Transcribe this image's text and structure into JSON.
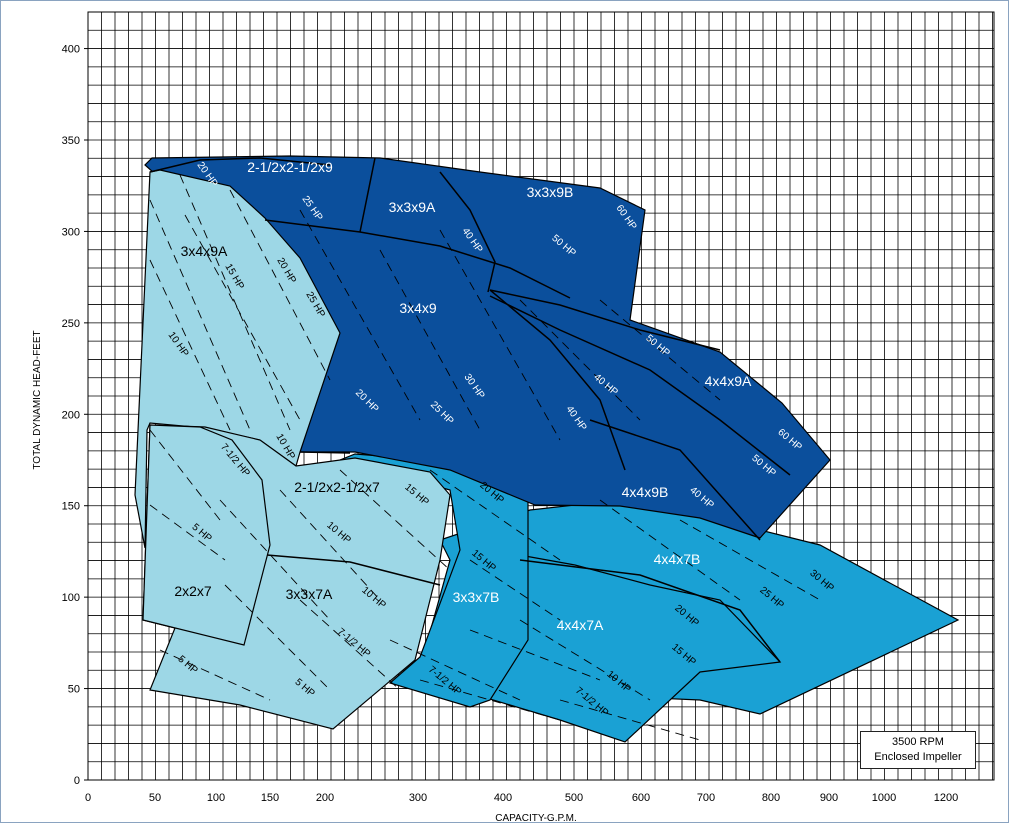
{
  "chart_data": {
    "type": "area",
    "title": "",
    "xlabel": "CAPACITY-G.P.M.",
    "ylabel": "TOTAL DYNAMIC HEAD-FEET",
    "x_ticks": [
      "0",
      "50",
      "100",
      "150",
      "200",
      "300",
      "400",
      "500",
      "600",
      "700",
      "800",
      "900",
      "1000",
      "1200"
    ],
    "y_ticks": [
      "0",
      "50",
      "100",
      "150",
      "200",
      "250",
      "300",
      "350",
      "400"
    ],
    "ylim": [
      0,
      420
    ],
    "x_scale": "nonlinear (compressed above 200 G.P.M.)",
    "grid": true,
    "note": {
      "line1": "3500 RPM",
      "line2": "Enclosed Impeller"
    },
    "colors": {
      "light": "#9dd7e6",
      "medium": "#1aa1d4",
      "dark": "#0b4f9c",
      "outline": "#000000",
      "grid": "#000000"
    },
    "pump_models": [
      {
        "name": "2-1/2x2-1/2x9",
        "shade": "dark"
      },
      {
        "name": "3x3x9A",
        "shade": "dark"
      },
      {
        "name": "3x3x9B",
        "shade": "dark"
      },
      {
        "name": "3x4x9",
        "shade": "dark"
      },
      {
        "name": "4x4x9A",
        "shade": "dark"
      },
      {
        "name": "4x4x9B",
        "shade": "dark"
      },
      {
        "name": "3x4x9A",
        "shade": "light"
      },
      {
        "name": "2-1/2x2-1/2x7",
        "shade": "light"
      },
      {
        "name": "2x2x7",
        "shade": "light"
      },
      {
        "name": "3x3x7A",
        "shade": "light"
      },
      {
        "name": "3x3x7B",
        "shade": "medium"
      },
      {
        "name": "4x4x7A",
        "shade": "medium"
      },
      {
        "name": "4x4x7B",
        "shade": "medium"
      }
    ],
    "hp_labels": [
      "20 HP",
      "25 HP",
      "40 HP",
      "50 HP",
      "60 HP",
      "20 HP",
      "25 HP",
      "15 HP",
      "10 HP",
      "30 HP",
      "20 HP",
      "25 HP",
      "40 HP",
      "40 HP",
      "50 HP",
      "60 HP",
      "50 HP",
      "40 HP",
      "7-1/2 HP",
      "5 HP",
      "15 HP",
      "10 HP",
      "20 HP",
      "15 HP",
      "10 HP",
      "10 HP",
      "7-1/2 HP",
      "5 HP",
      "5 HP",
      "7-1/2 HP",
      "30 HP",
      "25 HP",
      "20 HP",
      "15 HP",
      "10 HP",
      "7-1/2 HP"
    ]
  }
}
